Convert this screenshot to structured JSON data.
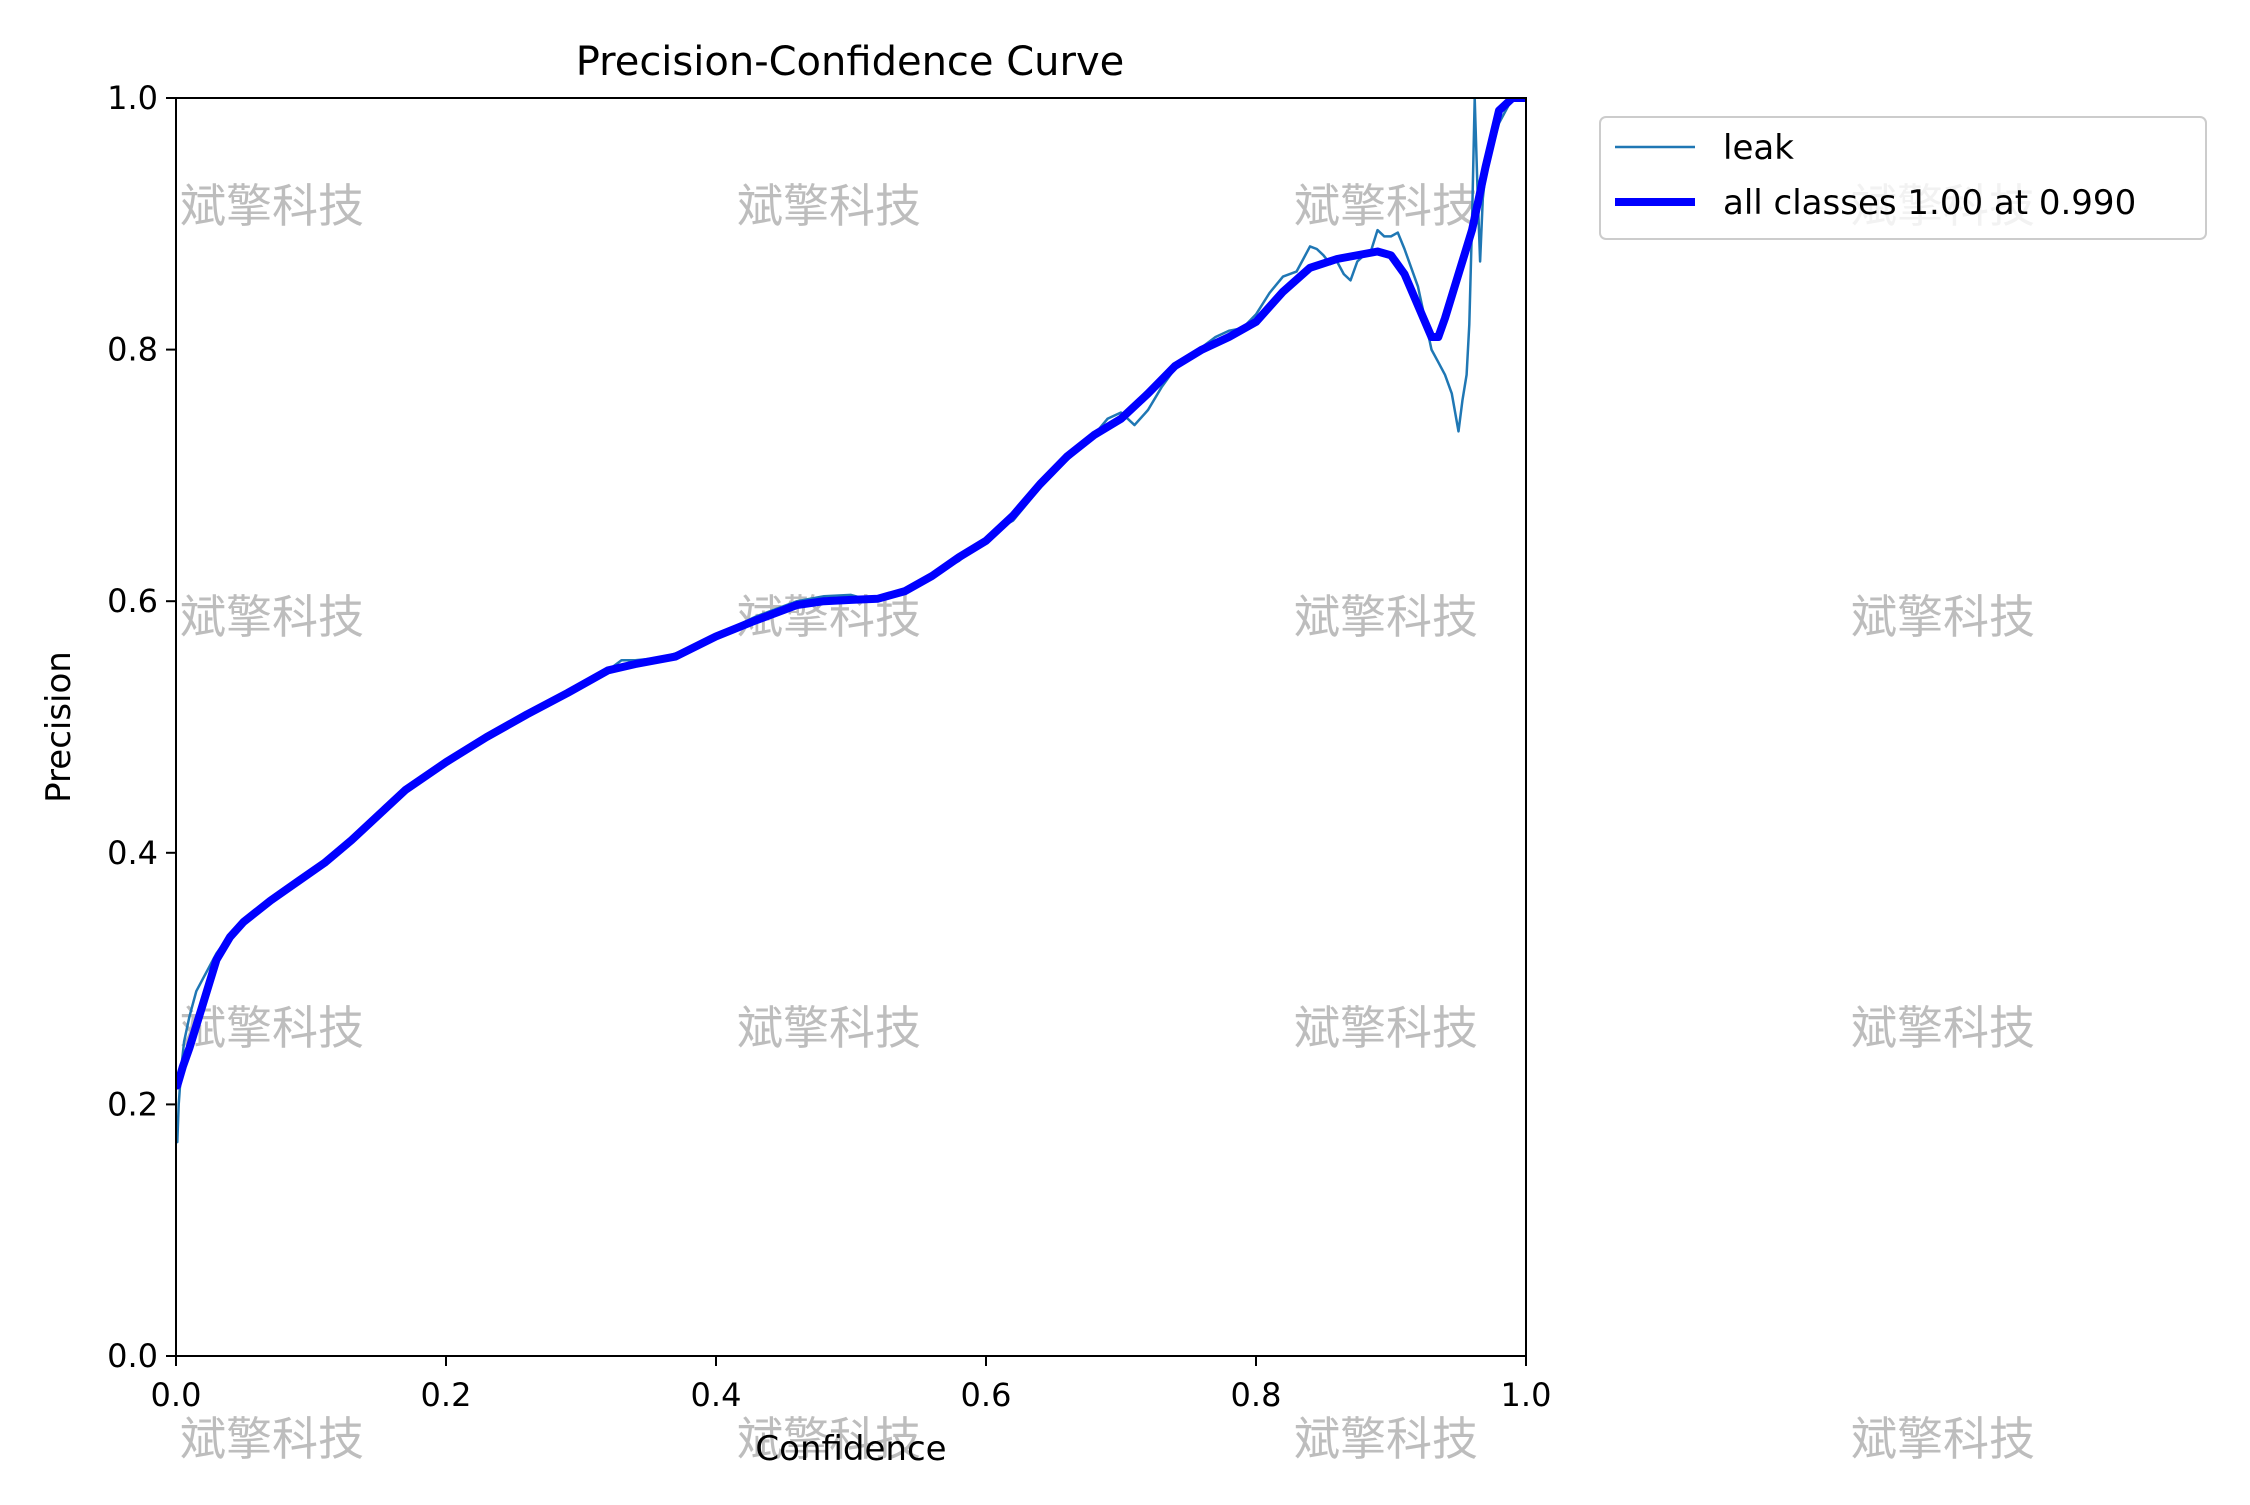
{
  "chart_data": {
    "type": "line",
    "title": "Precision-Confidence Curve",
    "xlabel": "Confidence",
    "ylabel": "Precision",
    "xlim": [
      0.0,
      1.0
    ],
    "ylim": [
      0.0,
      1.0
    ],
    "xticks": [
      "0.0",
      "0.2",
      "0.4",
      "0.6",
      "0.8",
      "1.0"
    ],
    "yticks": [
      "0.0",
      "0.2",
      "0.4",
      "0.6",
      "0.8",
      "1.0"
    ],
    "grid": false,
    "legend_position": "outside-top-right",
    "series": [
      {
        "name": "leak",
        "color": "#1f77b4",
        "x": [
          0.001,
          0.002,
          0.004,
          0.006,
          0.01,
          0.015,
          0.02,
          0.03,
          0.04,
          0.05,
          0.07,
          0.09,
          0.11,
          0.13,
          0.15,
          0.17,
          0.2,
          0.23,
          0.26,
          0.29,
          0.32,
          0.33,
          0.34,
          0.36,
          0.38,
          0.4,
          0.43,
          0.46,
          0.48,
          0.5,
          0.51,
          0.53,
          0.55,
          0.58,
          0.61,
          0.62,
          0.64,
          0.66,
          0.68,
          0.69,
          0.7,
          0.71,
          0.72,
          0.73,
          0.74,
          0.75,
          0.76,
          0.77,
          0.78,
          0.79,
          0.8,
          0.81,
          0.82,
          0.83,
          0.835,
          0.84,
          0.845,
          0.85,
          0.855,
          0.86,
          0.865,
          0.87,
          0.875,
          0.88,
          0.885,
          0.89,
          0.895,
          0.9,
          0.905,
          0.91,
          0.92,
          0.93,
          0.935,
          0.94,
          0.945,
          0.95,
          0.953,
          0.956,
          0.958,
          0.96,
          0.962,
          0.964,
          0.966,
          0.968,
          0.97,
          0.98,
          0.99,
          1.0
        ],
        "y": [
          0.17,
          0.2,
          0.23,
          0.25,
          0.27,
          0.29,
          0.3,
          0.32,
          0.335,
          0.345,
          0.362,
          0.377,
          0.392,
          0.41,
          0.43,
          0.45,
          0.472,
          0.492,
          0.51,
          0.527,
          0.545,
          0.553,
          0.553,
          0.555,
          0.562,
          0.573,
          0.588,
          0.6,
          0.604,
          0.605,
          0.602,
          0.604,
          0.615,
          0.632,
          0.658,
          0.664,
          0.69,
          0.712,
          0.732,
          0.745,
          0.75,
          0.74,
          0.752,
          0.77,
          0.785,
          0.795,
          0.802,
          0.81,
          0.815,
          0.817,
          0.828,
          0.845,
          0.858,
          0.862,
          0.872,
          0.882,
          0.88,
          0.875,
          0.868,
          0.87,
          0.86,
          0.855,
          0.87,
          0.875,
          0.878,
          0.895,
          0.89,
          0.89,
          0.893,
          0.88,
          0.85,
          0.8,
          0.79,
          0.78,
          0.765,
          0.735,
          0.76,
          0.78,
          0.82,
          0.9,
          1.0,
          0.93,
          0.87,
          0.92,
          0.94,
          0.98,
          1.0,
          1.0
        ]
      },
      {
        "name": "all classes 1.00 at 0.990",
        "color": "#0000ff",
        "x": [
          0.001,
          0.005,
          0.01,
          0.02,
          0.03,
          0.04,
          0.05,
          0.07,
          0.09,
          0.11,
          0.13,
          0.15,
          0.17,
          0.2,
          0.23,
          0.26,
          0.29,
          0.32,
          0.34,
          0.37,
          0.4,
          0.43,
          0.46,
          0.48,
          0.5,
          0.52,
          0.54,
          0.56,
          0.58,
          0.6,
          0.62,
          0.64,
          0.66,
          0.68,
          0.7,
          0.72,
          0.74,
          0.76,
          0.78,
          0.8,
          0.82,
          0.84,
          0.86,
          0.88,
          0.89,
          0.9,
          0.91,
          0.92,
          0.93,
          0.935,
          0.94,
          0.95,
          0.96,
          0.97,
          0.98,
          0.99,
          1.0
        ],
        "y": [
          0.215,
          0.23,
          0.245,
          0.28,
          0.315,
          0.333,
          0.345,
          0.362,
          0.377,
          0.392,
          0.41,
          0.43,
          0.45,
          0.472,
          0.492,
          0.51,
          0.527,
          0.545,
          0.55,
          0.556,
          0.572,
          0.585,
          0.597,
          0.6,
          0.601,
          0.602,
          0.608,
          0.62,
          0.635,
          0.648,
          0.668,
          0.693,
          0.715,
          0.732,
          0.745,
          0.765,
          0.787,
          0.8,
          0.81,
          0.822,
          0.846,
          0.865,
          0.872,
          0.876,
          0.878,
          0.875,
          0.86,
          0.835,
          0.81,
          0.81,
          0.825,
          0.86,
          0.895,
          0.945,
          0.99,
          1.0,
          1.0
        ]
      }
    ],
    "watermark": "斌擎科技"
  }
}
